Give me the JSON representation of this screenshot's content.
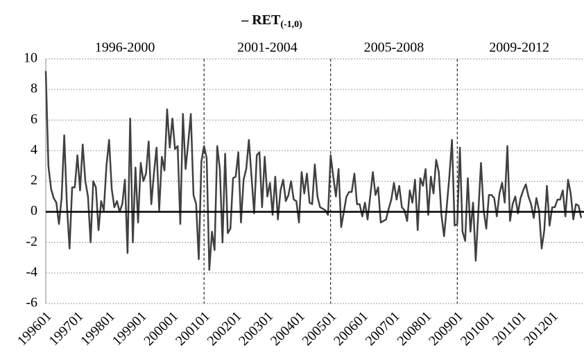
{
  "chart_data": {
    "type": "line",
    "title": "– RET",
    "title_subscript": "(-1,0)",
    "categories": [
      "199601",
      null,
      null,
      null,
      null,
      null,
      null,
      null,
      null,
      null,
      null,
      null,
      "199701",
      null,
      null,
      null,
      null,
      null,
      null,
      null,
      null,
      null,
      null,
      null,
      "199801",
      null,
      null,
      null,
      null,
      null,
      null,
      null,
      null,
      null,
      null,
      null,
      "199901",
      null,
      null,
      null,
      null,
      null,
      null,
      null,
      null,
      null,
      null,
      null,
      "200001",
      null,
      null,
      null,
      null,
      null,
      null,
      null,
      null,
      null,
      null,
      null,
      "200101",
      null,
      null,
      null,
      null,
      null,
      null,
      null,
      null,
      null,
      null,
      null,
      "200201",
      null,
      null,
      null,
      null,
      null,
      null,
      null,
      null,
      null,
      null,
      null,
      "200301",
      null,
      null,
      null,
      null,
      null,
      null,
      null,
      null,
      null,
      null,
      null,
      "200401",
      null,
      null,
      null,
      null,
      null,
      null,
      null,
      null,
      null,
      null,
      null,
      "200501",
      null,
      null,
      null,
      null,
      null,
      null,
      null,
      null,
      null,
      null,
      null,
      "200601",
      null,
      null,
      null,
      null,
      null,
      null,
      null,
      null,
      null,
      null,
      null,
      "200701",
      null,
      null,
      null,
      null,
      null,
      null,
      null,
      null,
      null,
      null,
      null,
      "200801",
      null,
      null,
      null,
      null,
      null,
      null,
      null,
      null,
      null,
      null,
      null,
      "200901",
      null,
      null,
      null,
      null,
      null,
      null,
      null,
      null,
      null,
      null,
      null,
      "201001",
      null,
      null,
      null,
      null,
      null,
      null,
      null,
      null,
      null,
      null,
      null,
      "201101",
      null,
      null,
      null,
      null,
      null,
      null,
      null,
      null,
      null,
      null,
      null,
      "201201",
      null,
      null,
      null,
      null,
      null,
      null,
      null,
      null,
      null,
      null,
      null
    ],
    "series": [
      {
        "color": "#404040",
        "values": [
          9.2,
          3.0,
          1.5,
          0.9,
          0.6,
          -0.8,
          0.9,
          5.0,
          0.5,
          -2.4,
          1.6,
          1.6,
          3.7,
          1.4,
          4.4,
          2.0,
          1.0,
          -2.0,
          2.0,
          1.6,
          -1.2,
          0.7,
          0.1,
          3.0,
          4.7,
          1.5,
          0.3,
          0.7,
          0.0,
          0.5,
          2.1,
          -2.7,
          6.1,
          -2.0,
          2.9,
          -0.7,
          3.2,
          2.0,
          2.5,
          4.6,
          0.5,
          2.5,
          4.2,
          0.1,
          3.6,
          2.7,
          6.7,
          4.2,
          6.1,
          4.1,
          4.3,
          -0.8,
          6.4,
          2.8,
          4.5,
          6.4,
          1.1,
          0.5,
          -3.1,
          3.3,
          4.3,
          3.5,
          -3.8,
          -1.3,
          -2.5,
          4.3,
          2.8,
          -2.0,
          3.8,
          -1.4,
          -1.1,
          2.2,
          2.3,
          3.9,
          -0.7,
          2.1,
          2.8,
          4.7,
          2.3,
          -0.1,
          3.7,
          3.9,
          0.3,
          3.6,
          1.0,
          1.9,
          -0.2,
          2.3,
          -0.5,
          1.4,
          2.1,
          0.7,
          1.1,
          2.0,
          0.8,
          0.7,
          -0.7,
          2.6,
          1.2,
          2.5,
          0.6,
          0.5,
          3.1,
          1.0,
          0.3,
          0.2,
          0.1,
          -0.2,
          3.7,
          2.3,
          1.0,
          2.8,
          -1.0,
          0.0,
          1.0,
          1.3,
          1.3,
          2.5,
          0.5,
          0.5,
          -0.3,
          0.6,
          -0.5,
          1.0,
          2.6,
          1.1,
          1.6,
          -0.7,
          -0.6,
          -0.5,
          0.2,
          0.8,
          1.9,
          0.8,
          1.7,
          0.3,
          0.1,
          -0.6,
          1.4,
          0.6,
          2.1,
          -1.2,
          2.2,
          1.7,
          2.8,
          -0.2,
          2.3,
          1.2,
          3.4,
          2.6,
          -0.2,
          -1.6,
          0.3,
          2.3,
          4.7,
          -0.9,
          -0.8,
          4.2,
          -1.3,
          -1.9,
          2.2,
          -1.3,
          0.6,
          -3.2,
          0.0,
          3.2,
          0.1,
          -1.1,
          1.1,
          1.1,
          0.9,
          -0.3,
          1.2,
          1.9,
          0.6,
          4.3,
          -0.6,
          0.5,
          1.0,
          -0.1,
          0.9,
          1.4,
          1.8,
          1.0,
          0.5,
          -0.4,
          0.9,
          0.1,
          -2.4,
          -1.2,
          1.7,
          -0.9,
          0.3,
          0.3,
          0.8,
          0.8,
          1.4,
          -0.3,
          2.1,
          1.2,
          -0.5,
          0.5,
          0.4,
          -0.4
        ]
      }
    ],
    "periods": [
      {
        "label": "1996-2000",
        "start": "199601"
      },
      {
        "label": "2001-2004",
        "start": "200101"
      },
      {
        "label": "2005-2008",
        "start": "200501"
      },
      {
        "label": "2009-2012",
        "start": "200901"
      }
    ],
    "ylim": [
      -6,
      10
    ],
    "yticks": [
      -6,
      -4,
      -2,
      0,
      2,
      4,
      6,
      8,
      10
    ],
    "grid": true
  }
}
